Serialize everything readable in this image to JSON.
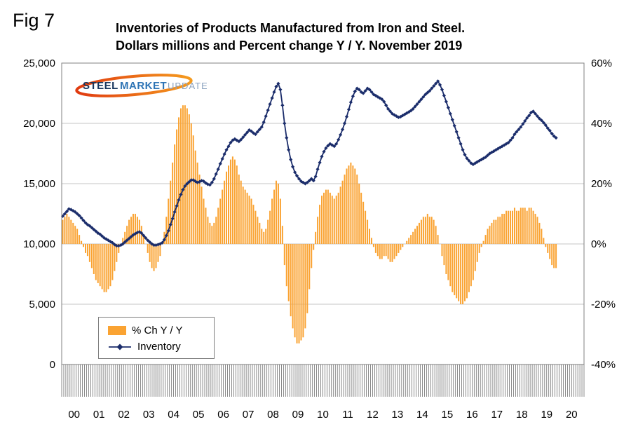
{
  "fig_label": "Fig 7",
  "title": {
    "line1": "Inventories of Products Manufactured from Iron and Steel.",
    "line2": "Dollars millions and Percent change Y / Y. November 2019"
  },
  "logo": {
    "word1": "STEEL",
    "word2": "MARKET",
    "word3": "UPDATE"
  },
  "legend": {
    "bar_label": "% Ch Y / Y",
    "line_label": "Inventory",
    "position": "inside bottom-left"
  },
  "colors": {
    "bar": "#FAA332",
    "line": "#1B2D6B",
    "grid": "#C6C6C6",
    "plot_border": "#808080",
    "tick_comb": "#595959",
    "logo_swoosh_start": "#E03A10",
    "logo_swoosh_end": "#F59B1E",
    "logo_steel": "#17365D",
    "logo_market": "#2E74B5",
    "logo_update": "#8CA3C0"
  },
  "chart_data": {
    "type": "bar+line",
    "title": "Inventories of Products Manufactured from Iron and Steel. Dollars millions and Percent change Y / Y. November 2019",
    "x": {
      "frequency": "monthly",
      "start": "2000-01",
      "end": "2019-11",
      "axis_span_months": 252,
      "year_tick_labels": [
        "00",
        "01",
        "02",
        "03",
        "04",
        "05",
        "06",
        "07",
        "08",
        "09",
        "10",
        "11",
        "12",
        "13",
        "14",
        "15",
        "16",
        "17",
        "18",
        "19",
        "20"
      ]
    },
    "left_axis": {
      "min": 0,
      "max": 25000,
      "tick_labels": [
        "25,000",
        "20,000",
        "15,000",
        "10,000",
        "5,000",
        "0"
      ]
    },
    "right_axis": {
      "min": -40,
      "max": 60,
      "tick_labels": [
        "60%",
        "40%",
        "20%",
        "0%",
        "-20%",
        "-40%"
      ]
    },
    "grid": "horizontal",
    "legend_position": "inside bottom-left",
    "series": [
      {
        "name": "% Ch Y / Y",
        "type": "bar",
        "axis": "right",
        "unit": "percent",
        "values": [
          8,
          9,
          10,
          9,
          8,
          7,
          6,
          5,
          3,
          1,
          -1,
          -3,
          -4,
          -6,
          -8,
          -10,
          -12,
          -13,
          -14,
          -15,
          -16,
          -16,
          -15,
          -14,
          -12,
          -9,
          -6,
          -3,
          0,
          2,
          4,
          6,
          8,
          9,
          10,
          10,
          9,
          8,
          6,
          3,
          0,
          -3,
          -6,
          -8,
          -9,
          -8,
          -6,
          -4,
          0,
          4,
          9,
          15,
          21,
          27,
          33,
          38,
          42,
          45,
          46,
          46,
          45,
          43,
          40,
          36,
          31,
          27,
          23,
          19,
          15,
          12,
          9,
          7,
          6,
          7,
          9,
          12,
          15,
          18,
          21,
          24,
          26,
          28,
          29,
          28,
          26,
          23,
          21,
          19,
          18,
          17,
          16,
          15,
          13,
          11,
          9,
          7,
          5,
          4,
          5,
          8,
          11,
          15,
          18,
          21,
          20,
          15,
          6,
          -7,
          -14,
          -19,
          -24,
          -28,
          -31,
          -33,
          -33,
          -32,
          -31,
          -28,
          -23,
          -15,
          -8,
          -2,
          4,
          9,
          13,
          16,
          17,
          18,
          18,
          17,
          16,
          15,
          16,
          17,
          19,
          21,
          23,
          25,
          26,
          27,
          26,
          25,
          23,
          20,
          17,
          14,
          11,
          8,
          5,
          2,
          -1,
          -3,
          -4,
          -5,
          -5,
          -4,
          -4,
          -5,
          -6,
          -6,
          -5,
          -4,
          -3,
          -2,
          -1,
          0,
          1,
          2,
          3,
          4,
          5,
          6,
          7,
          8,
          9,
          9,
          10,
          9,
          9,
          8,
          6,
          3,
          0,
          -4,
          -7,
          -10,
          -12,
          -14,
          -16,
          -17,
          -18,
          -19,
          -20,
          -20,
          -19,
          -18,
          -16,
          -14,
          -12,
          -9,
          -6,
          -3,
          -1,
          1,
          3,
          5,
          6,
          7,
          8,
          8,
          9,
          9,
          10,
          10,
          11,
          11,
          11,
          11,
          12,
          11,
          11,
          12,
          12,
          12,
          11,
          12,
          12,
          11,
          10,
          9,
          7,
          5,
          2,
          -1,
          -3,
          -5,
          -7,
          -8,
          -8
        ]
      },
      {
        "name": "Inventory",
        "type": "line",
        "axis": "left",
        "unit": "dollars millions",
        "values": [
          12300,
          12500,
          12700,
          12900,
          12850,
          12750,
          12650,
          12500,
          12350,
          12150,
          11950,
          11750,
          11600,
          11500,
          11350,
          11200,
          11050,
          10900,
          10800,
          10650,
          10500,
          10400,
          10300,
          10200,
          10100,
          9950,
          9850,
          9850,
          9900,
          10000,
          10150,
          10300,
          10450,
          10600,
          10750,
          10850,
          10950,
          11000,
          10900,
          10700,
          10500,
          10300,
          10150,
          10000,
          9900,
          9900,
          9950,
          10000,
          10100,
          10350,
          10700,
          11100,
          11600,
          12100,
          12650,
          13150,
          13650,
          14100,
          14500,
          14800,
          15000,
          15150,
          15300,
          15300,
          15200,
          15100,
          15150,
          15250,
          15200,
          15050,
          14950,
          14900,
          15100,
          15400,
          15800,
          16200,
          16650,
          17050,
          17450,
          17800,
          18100,
          18400,
          18600,
          18700,
          18600,
          18500,
          18650,
          18850,
          19050,
          19250,
          19450,
          19350,
          19200,
          19100,
          19300,
          19500,
          19700,
          20100,
          20600,
          21100,
          21600,
          22100,
          22600,
          23050,
          23300,
          22800,
          21500,
          20000,
          18800,
          17800,
          17000,
          16400,
          15950,
          15650,
          15400,
          15200,
          15100,
          15000,
          15100,
          15250,
          15400,
          15250,
          15600,
          16200,
          16750,
          17250,
          17650,
          17950,
          18150,
          18300,
          18200,
          18100,
          18300,
          18650,
          19050,
          19500,
          20000,
          20550,
          21150,
          21750,
          22250,
          22650,
          22900,
          22800,
          22600,
          22500,
          22700,
          22900,
          22800,
          22600,
          22400,
          22300,
          22200,
          22100,
          22000,
          21800,
          21500,
          21200,
          21000,
          20800,
          20700,
          20600,
          20500,
          20550,
          20650,
          20750,
          20850,
          20950,
          21050,
          21200,
          21400,
          21600,
          21800,
          22000,
          22200,
          22400,
          22550,
          22700,
          22900,
          23100,
          23300,
          23500,
          23200,
          22800,
          22300,
          21800,
          21300,
          20800,
          20300,
          19800,
          19300,
          18800,
          18300,
          17800,
          17400,
          17100,
          16900,
          16700,
          16600,
          16700,
          16800,
          16900,
          17000,
          17100,
          17200,
          17350,
          17500,
          17600,
          17700,
          17800,
          17900,
          18000,
          18100,
          18200,
          18300,
          18400,
          18600,
          18800,
          19100,
          19300,
          19500,
          19700,
          19950,
          20200,
          20450,
          20650,
          20900,
          21000,
          20800,
          20600,
          20400,
          20250,
          20050,
          19850,
          19600,
          19400,
          19150,
          18950,
          18800
        ]
      }
    ]
  }
}
